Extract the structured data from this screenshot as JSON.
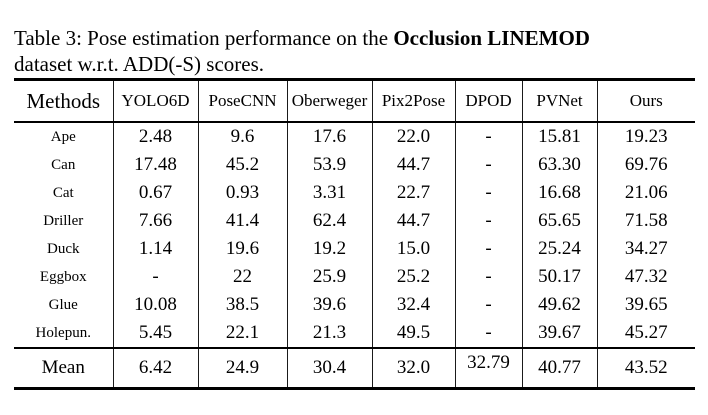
{
  "caption": {
    "text_before": "Table 3: Pose estimation performance on the ",
    "bold_text": "Occlusion LINEMOD",
    "text_after": "dataset w.r.t. ADD(-S) scores."
  },
  "table": {
    "methods_header": "Methods",
    "method_columns": [
      "YOLO6D",
      "PoseCNN",
      "Oberweger",
      "Pix2Pose",
      "DPOD",
      "PVNet",
      "Ours"
    ],
    "rows": [
      {
        "label": "Ape",
        "values": [
          "2.48",
          "9.6",
          "17.6",
          "22.0",
          "-",
          "15.81",
          "19.23"
        ],
        "bold_flags": [
          false,
          false,
          false,
          false,
          false,
          false,
          true
        ]
      },
      {
        "label": "Can",
        "values": [
          "17.48",
          "45.2",
          "53.9",
          "44.7",
          "-",
          "63.30",
          "69.76"
        ],
        "bold_flags": [
          false,
          false,
          false,
          false,
          false,
          false,
          true
        ]
      },
      {
        "label": "Cat",
        "values": [
          "0.67",
          "0.93",
          "3.31",
          "22.7",
          "-",
          "16.68",
          "21.06"
        ],
        "bold_flags": [
          false,
          false,
          false,
          false,
          false,
          false,
          true
        ]
      },
      {
        "label": "Driller",
        "values": [
          "7.66",
          "41.4",
          "62.4",
          "44.7",
          "-",
          "65.65",
          "71.58"
        ],
        "bold_flags": [
          false,
          false,
          false,
          false,
          false,
          false,
          true
        ]
      },
      {
        "label": "Duck",
        "values": [
          "1.14",
          "19.6",
          "19.2",
          "15.0",
          "-",
          "25.24",
          "34.27"
        ],
        "bold_flags": [
          false,
          false,
          false,
          false,
          false,
          false,
          true
        ]
      },
      {
        "label": "Eggbox",
        "values": [
          "-",
          "22",
          "25.9",
          "25.2",
          "-",
          "50.17",
          "47.32"
        ],
        "bold_flags": [
          false,
          false,
          false,
          false,
          false,
          true,
          false
        ]
      },
      {
        "label": "Glue",
        "values": [
          "10.08",
          "38.5",
          "39.6",
          "32.4",
          "-",
          "49.62",
          "39.65"
        ],
        "bold_flags": [
          false,
          false,
          false,
          false,
          false,
          true,
          false
        ]
      },
      {
        "label": "Holepun.",
        "values": [
          "5.45",
          "22.1",
          "21.3",
          "49.5",
          "-",
          "39.67",
          "45.27"
        ],
        "bold_flags": [
          false,
          false,
          false,
          false,
          false,
          false,
          true
        ]
      }
    ],
    "mean_row": {
      "label": "Mean",
      "values": [
        "6.42",
        "24.9",
        "30.4",
        "32.0",
        "32.79",
        "40.77",
        "43.52"
      ],
      "bold_flags": [
        false,
        false,
        false,
        false,
        false,
        false,
        true
      ],
      "raised_index": 4
    }
  },
  "colors": {
    "text": "#000000",
    "background": "#ffffff",
    "rule": "#000000"
  }
}
